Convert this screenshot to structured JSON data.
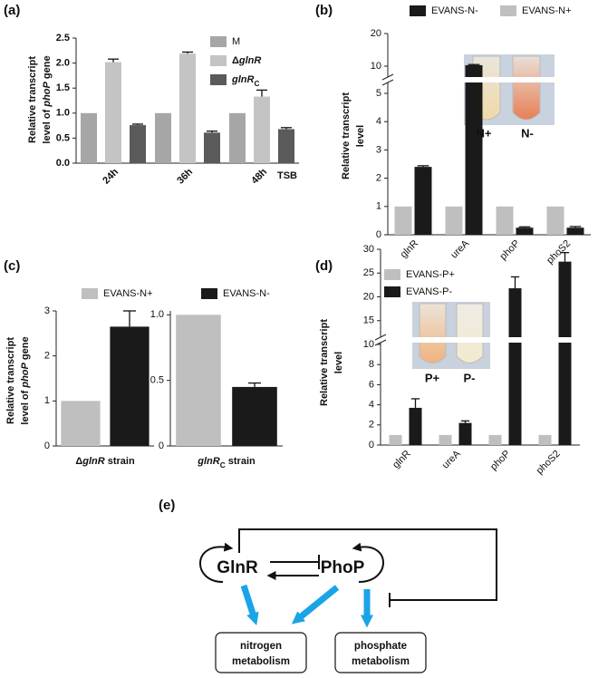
{
  "panel_labels": [
    "(a)",
    "(b)",
    "(c)",
    "(d)",
    "(e)"
  ],
  "chart_data": [
    {
      "type": "bar",
      "categories": [
        "24h",
        "36h",
        "48h"
      ],
      "series": [
        {
          "name": "M",
          "color": "#a6a6a6",
          "values": [
            1.0,
            1.0,
            1.0
          ],
          "errors": [
            null,
            null,
            null
          ]
        },
        {
          "name": [
            "Δ",
            "glnR"
          ],
          "name_style": [
            "bold",
            "bold-italic"
          ],
          "color": "#c4c4c4",
          "values": [
            2.02,
            2.19,
            1.33
          ],
          "errors": [
            0.06,
            0.03,
            0.13
          ]
        },
        {
          "name": [
            "glnR",
            "C"
          ],
          "name_style": [
            "bold-italic",
            "bold-sub"
          ],
          "color": "#5a5a5a",
          "values": [
            0.76,
            0.61,
            0.68
          ],
          "errors": [
            0.02,
            0.03,
            0.03
          ]
        }
      ],
      "ylabel": [
        [
          "Relative transcript"
        ],
        [
          "level of ",
          "phoP",
          " gene"
        ]
      ],
      "ylabel_style": [
        [
          "bold"
        ],
        [
          "bold",
          "bold-italic",
          "bold"
        ]
      ],
      "annotation": "TSB",
      "ylim": [
        0,
        2.5
      ],
      "yticks": [
        {
          "value": 0,
          "label": "0.0"
        },
        0.5,
        {
          "value": 1,
          "label": "1.0"
        },
        1.5,
        {
          "value": 2,
          "label": "2.0"
        },
        2.5
      ],
      "legend": "upper right"
    },
    {
      "type": "bar",
      "categories": [
        "glnR",
        "ureA",
        "phoP",
        "phoS2"
      ],
      "series": [
        {
          "name": "EVANS-N-",
          "color": "#1a1a1a",
          "values": [
            2.4,
            10.3,
            0.25,
            0.25
          ],
          "errors": [
            0.04,
            0.2,
            0.03,
            0.04
          ]
        },
        {
          "name": "EVANS-N+",
          "color": "#bfbfbf",
          "values": [
            1,
            1,
            1,
            1
          ],
          "errors": [
            null,
            null,
            null,
            null
          ]
        }
      ],
      "ylabel": [
        [
          "Relative transcript"
        ],
        [
          "level"
        ]
      ],
      "ylabel_style": [
        [
          "bold"
        ],
        [
          "bold"
        ]
      ],
      "inset_labels": [
        "N+",
        "N-"
      ],
      "ylim": [
        0,
        20
      ],
      "y_break": [
        5,
        10
      ],
      "yticks": [
        0,
        1,
        2,
        3,
        4,
        5,
        10,
        20
      ],
      "legend": "top"
    },
    {
      "type": "bar",
      "categories": [
        [
          "Δ",
          "glnR",
          " strain"
        ],
        [
          "glnR",
          "C",
          " strain"
        ]
      ],
      "category_style": [
        [
          "bold",
          "bold-italic",
          "bold"
        ],
        [
          "bold-italic",
          "bold-sub",
          "bold"
        ]
      ],
      "series": [
        {
          "name": "EVANS-N+",
          "color": "#bfbfbf",
          "values": [
            1,
            1
          ],
          "errors": [
            null,
            null
          ]
        },
        {
          "name": "EVANS-N-",
          "color": "#1a1a1a",
          "values": [
            2.65,
            0.45
          ],
          "errors": [
            0.35,
            0.03
          ]
        }
      ],
      "ylabel": [
        [
          "Relative transcript"
        ],
        [
          "level of ",
          "phoP",
          " gene"
        ]
      ],
      "ylabel_style": [
        [
          "bold"
        ],
        [
          "bold",
          "bold-italic",
          "bold"
        ]
      ],
      "panels": [
        {
          "ylim": [
            0,
            3
          ],
          "yticks": [
            0,
            1,
            2,
            3
          ]
        },
        {
          "ylim": [
            0,
            1.03
          ],
          "yticks": [
            0,
            0.5,
            {
              "value": 1,
              "label": "1.0"
            }
          ]
        }
      ],
      "legend": "top"
    },
    {
      "type": "bar",
      "categories": [
        "glnR",
        "ureA",
        "phoP",
        "phoS2"
      ],
      "series": [
        {
          "name": "EVANS-P+",
          "color": "#bfbfbf",
          "values": [
            1,
            1,
            1,
            1
          ],
          "errors": [
            null,
            null,
            null,
            null
          ]
        },
        {
          "name": "EVANS-P-",
          "color": "#1a1a1a",
          "values": [
            3.7,
            2.2,
            21.8,
            27.4
          ],
          "errors": [
            0.9,
            0.2,
            2.4,
            1.9
          ]
        }
      ],
      "ylabel": [
        [
          "Relative transcript"
        ],
        [
          "level"
        ]
      ],
      "ylabel_style": [
        [
          "bold"
        ],
        [
          "bold"
        ]
      ],
      "inset_labels": [
        "P+",
        "P-"
      ],
      "ylim": [
        0,
        30
      ],
      "y_break": [
        10,
        10
      ],
      "yticks": [
        0,
        2,
        4,
        6,
        8,
        10,
        15,
        20,
        25,
        30
      ],
      "legend": "upper left"
    }
  ],
  "diagram": {
    "nodes": [
      "GlnR",
      "PhoP"
    ],
    "boxes": [
      [
        "nitrogen",
        "metabolism"
      ],
      [
        "phosphate",
        "metabolism"
      ]
    ]
  }
}
